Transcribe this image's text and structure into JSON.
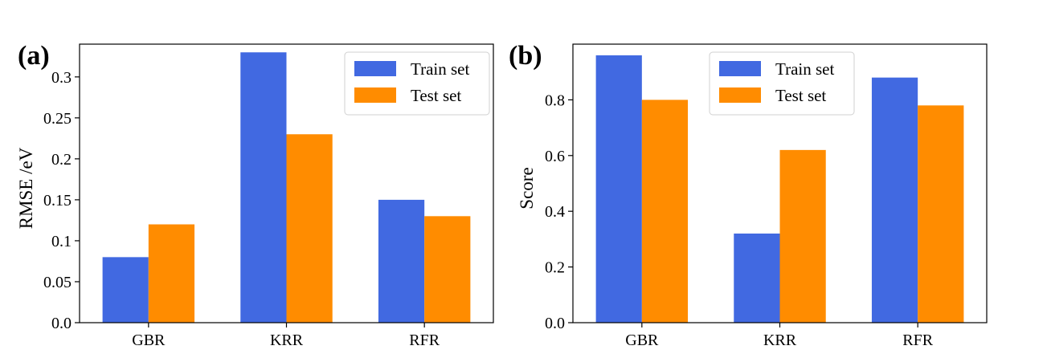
{
  "chart_data": [
    {
      "panel_label": "(a)",
      "type": "bar",
      "title": "",
      "xlabel": "",
      "ylabel": "RMSE /eV",
      "categories": [
        "GBR",
        "KRR",
        "RFR"
      ],
      "series": [
        {
          "name": "Train set",
          "values": [
            0.08,
            0.33,
            0.15
          ]
        },
        {
          "name": "Test set",
          "values": [
            0.12,
            0.23,
            0.13
          ]
        }
      ],
      "ylim": [
        0,
        0.34
      ],
      "yticks": [
        0.0,
        0.05,
        0.1,
        0.15,
        0.2,
        0.25,
        0.3
      ],
      "ytick_labels": [
        "0.0",
        "0.05",
        "0.1",
        "0.15",
        "0.2",
        "0.25",
        "0.3"
      ],
      "grid": false,
      "legend_position": "top-right"
    },
    {
      "panel_label": "(b)",
      "type": "bar",
      "title": "",
      "xlabel": "",
      "ylabel": "Score",
      "categories": [
        "GBR",
        "KRR",
        "RFR"
      ],
      "series": [
        {
          "name": "Train set",
          "values": [
            0.96,
            0.32,
            0.88
          ]
        },
        {
          "name": "Test set",
          "values": [
            0.8,
            0.62,
            0.78
          ]
        }
      ],
      "ylim": [
        0,
        1.0
      ],
      "yticks": [
        0.0,
        0.2,
        0.4,
        0.6,
        0.8
      ],
      "ytick_labels": [
        "0.0",
        "0.2",
        "0.4",
        "0.6",
        "0.8"
      ],
      "grid": false,
      "legend_position": "top-center"
    }
  ],
  "colors": {
    "train": "#4169e1",
    "test": "#ff8c00"
  }
}
